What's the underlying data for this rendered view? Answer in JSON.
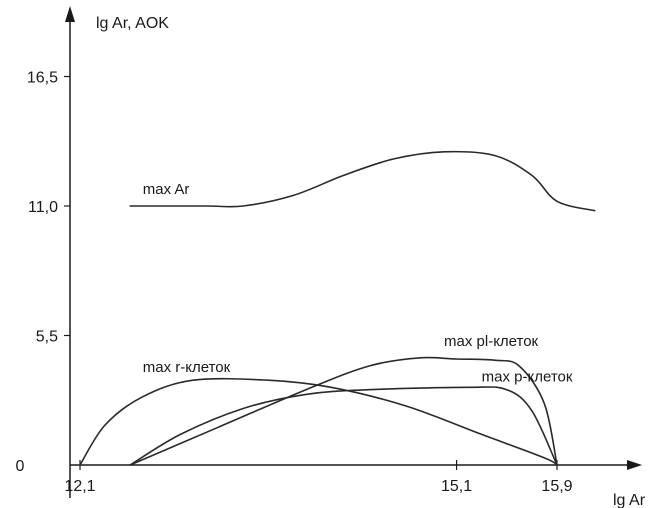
{
  "chart_data": {
    "type": "line",
    "title": "",
    "xlabel": "lg Ar",
    "ylabel": "lg Ar, AOK",
    "xlim": [
      11.2,
      16.6
    ],
    "ylim": [
      0,
      19.0
    ],
    "x_ticks": [
      {
        "value": 12.1,
        "label": "12,1"
      },
      {
        "value": 15.1,
        "label": "15,1"
      },
      {
        "value": 15.9,
        "label": "15,9"
      }
    ],
    "y_ticks": [
      {
        "value": 0,
        "label": "0"
      },
      {
        "value": 5.5,
        "label": "5,5"
      },
      {
        "value": 11.0,
        "label": "11,0"
      },
      {
        "value": 16.5,
        "label": "16,5"
      }
    ],
    "grid": false,
    "series": [
      {
        "name": "max Ar",
        "label_at": [
          12.6,
          11.5
        ],
        "points": [
          [
            12.5,
            11.0
          ],
          [
            13.1,
            11.0
          ],
          [
            13.4,
            11.0
          ],
          [
            13.8,
            11.45
          ],
          [
            14.2,
            12.3
          ],
          [
            14.6,
            13.0
          ],
          [
            15.0,
            13.3
          ],
          [
            15.4,
            13.15
          ],
          [
            15.7,
            12.3
          ],
          [
            15.9,
            11.2
          ],
          [
            16.2,
            10.8
          ]
        ]
      },
      {
        "name": "max r-клеток",
        "label_at": [
          12.6,
          3.95
        ],
        "points": [
          [
            12.1,
            0.0
          ],
          [
            12.3,
            1.7
          ],
          [
            12.6,
            2.9
          ],
          [
            13.0,
            3.6
          ],
          [
            13.6,
            3.6
          ],
          [
            14.1,
            3.3
          ],
          [
            14.7,
            2.5
          ],
          [
            15.3,
            1.3
          ],
          [
            15.8,
            0.3
          ],
          [
            15.9,
            0.0
          ]
        ]
      },
      {
        "name": "max pl-клеток",
        "label_at": [
          15.0,
          5.05
        ],
        "points": [
          [
            12.5,
            0.0
          ],
          [
            13.2,
            1.6
          ],
          [
            13.9,
            3.2
          ],
          [
            14.4,
            4.2
          ],
          [
            14.8,
            4.55
          ],
          [
            15.1,
            4.5
          ],
          [
            15.4,
            4.45
          ],
          [
            15.6,
            4.2
          ],
          [
            15.8,
            2.6
          ],
          [
            15.9,
            0.0
          ]
        ]
      },
      {
        "name": "max p-клеток",
        "label_at": [
          15.3,
          3.55
        ],
        "points": [
          [
            12.5,
            0.0
          ],
          [
            12.9,
            1.3
          ],
          [
            13.4,
            2.4
          ],
          [
            13.9,
            3.0
          ],
          [
            14.4,
            3.2
          ],
          [
            15.2,
            3.3
          ],
          [
            15.5,
            3.2
          ],
          [
            15.7,
            2.3
          ],
          [
            15.9,
            0.0
          ]
        ]
      }
    ]
  }
}
